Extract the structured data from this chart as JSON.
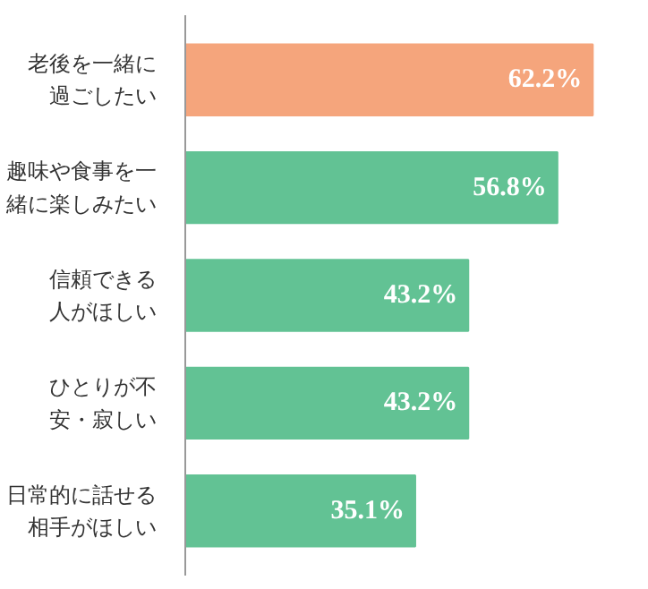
{
  "chart_data": {
    "type": "bar",
    "orientation": "horizontal",
    "categories": [
      "老後を一緒に過ごしたい",
      "趣味や食事を一緒に楽しみたい",
      "信頼できる人がほしい",
      "ひとりが不安・寂しい",
      "日常的に話せる相手がほしい"
    ],
    "values": [
      62.2,
      56.8,
      43.2,
      43.2,
      35.1
    ],
    "colors": [
      "#f5a57c",
      "#62c294",
      "#62c294",
      "#62c294",
      "#62c294"
    ],
    "value_labels": [
      "62.2%",
      "56.8%",
      "43.2%",
      "43.2%",
      "35.1%"
    ],
    "grid": false,
    "tick_labels": "y"
  }
}
